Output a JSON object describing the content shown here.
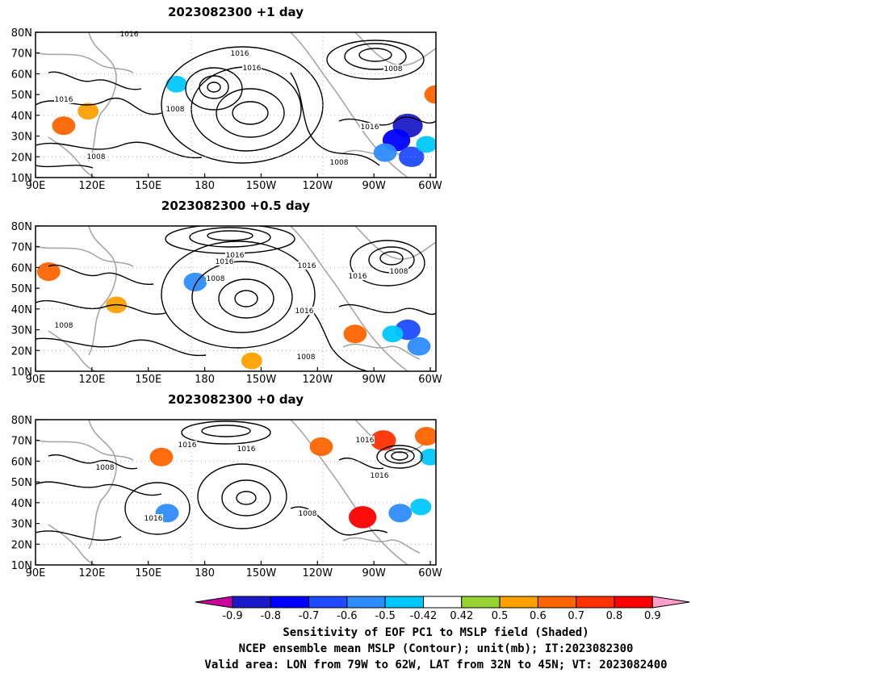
{
  "panels": [
    {
      "title": "2023082300  +1 day",
      "contour_labels": [
        "1016",
        "1016",
        "1016",
        "1008",
        "1016",
        "1008",
        "1008",
        "1016",
        "1008"
      ],
      "shading": [
        {
          "lon": -72,
          "lat": 35,
          "value": -0.9
        },
        {
          "lon": -78,
          "lat": 28,
          "value": -0.8
        },
        {
          "lon": -70,
          "lat": 20,
          "value": -0.7
        },
        {
          "lon": -84,
          "lat": 22,
          "value": -0.6
        },
        {
          "lon": -62,
          "lat": 26,
          "value": -0.5
        },
        {
          "lon": 165,
          "lat": 55,
          "value": -0.5
        },
        {
          "lon": 105,
          "lat": 35,
          "value": 0.6
        },
        {
          "lon": 118,
          "lat": 42,
          "value": 0.5
        },
        {
          "lon": -57,
          "lat": 50,
          "value": 0.6
        }
      ]
    },
    {
      "title": "2023082300  +0.5 day",
      "contour_labels": [
        "1016",
        "1016",
        "1016",
        "1008",
        "1016",
        "1016",
        "1008",
        "1008",
        "1008"
      ],
      "shading": [
        {
          "lon": -72,
          "lat": 30,
          "value": -0.7
        },
        {
          "lon": -66,
          "lat": 22,
          "value": -0.6
        },
        {
          "lon": -80,
          "lat": 28,
          "value": -0.5
        },
        {
          "lon": 175,
          "lat": 53,
          "value": -0.6
        },
        {
          "lon": -100,
          "lat": 28,
          "value": 0.6
        },
        {
          "lon": 97,
          "lat": 58,
          "value": 0.6
        },
        {
          "lon": 133,
          "lat": 42,
          "value": 0.5
        },
        {
          "lon": -155,
          "lat": 15,
          "value": 0.5
        }
      ]
    },
    {
      "title": "2023082300  +0 day",
      "contour_labels": [
        "1016",
        "1016",
        "1008",
        "1016",
        "1008",
        "1016",
        "1016"
      ],
      "shading": [
        {
          "lon": -96,
          "lat": 33,
          "value": 0.8
        },
        {
          "lon": -118,
          "lat": 67,
          "value": 0.6
        },
        {
          "lon": -85,
          "lat": 70,
          "value": 0.7
        },
        {
          "lon": -62,
          "lat": 72,
          "value": 0.6
        },
        {
          "lon": -76,
          "lat": 35,
          "value": -0.6
        },
        {
          "lon": -65,
          "lat": 38,
          "value": -0.5
        },
        {
          "lon": -60,
          "lat": 62,
          "value": -0.5
        },
        {
          "lon": 160,
          "lat": 35,
          "value": -0.6
        },
        {
          "lon": 157,
          "lat": 62,
          "value": 0.6
        }
      ]
    }
  ],
  "axes": {
    "x_ticks": [
      "90E",
      "120E",
      "150E",
      "180",
      "150W",
      "120W",
      "90W",
      "60W"
    ],
    "y_ticks": [
      "80N",
      "70N",
      "60N",
      "50N",
      "40N",
      "30N",
      "20N",
      "10N"
    ],
    "lon_range": [
      90,
      303
    ],
    "lat_range": [
      10,
      80
    ]
  },
  "colorbar": {
    "labels": [
      "-0.9",
      "-0.8",
      "-0.7",
      "-0.6",
      "-0.5",
      "-0.42",
      "0.42",
      "0.5",
      "0.6",
      "0.7",
      "0.8",
      "0.9"
    ],
    "colors": [
      "#c8009c",
      "#1a1ac8",
      "#0000ff",
      "#1e4bff",
      "#2d8cff",
      "#00c8ff",
      "#ffffff",
      "#96d232",
      "#ffa000",
      "#ff6400",
      "#ff3200",
      "#ff0000",
      "#ff9ecb"
    ]
  },
  "caption": {
    "line1": "Sensitivity of EOF PC1 to MSLP field (Shaded)",
    "line2": "NCEP ensemble mean MSLP (Contour); unit(mb); IT:2023082300",
    "line3": "Valid area: LON from 79W to 62W, LAT from 32N to 45N; VT: 2023082400"
  }
}
